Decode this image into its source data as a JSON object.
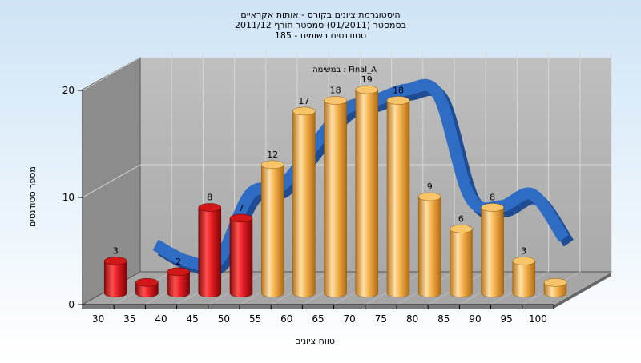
{
  "chart_data": {
    "type": "bar",
    "title_lines": [
      "היסטוגרמת ציונים בקורס - אותות אקראיים",
      "בסמסטר  (01/2011)  סמסטר חורף 2011/12",
      "סטודנטים רשומים - 185"
    ],
    "xlabel": "טווח ציונים",
    "ylabel": "מספר סטודנטים",
    "series_label": "במשימה : Final_A",
    "categories": [
      "30",
      "35",
      "40",
      "45",
      "50",
      "55",
      "60",
      "65",
      "70",
      "75",
      "80",
      "85",
      "90",
      "95",
      "100"
    ],
    "values": [
      3,
      1,
      2,
      8,
      7,
      12,
      17,
      18,
      19,
      18,
      9,
      6,
      8,
      3,
      1
    ],
    "value_labels": [
      "3",
      "",
      "2",
      "8",
      "7",
      "12",
      "17",
      "18",
      "19",
      "18",
      "9",
      "6",
      "8",
      "3",
      ""
    ],
    "fail_count": 5,
    "ylim": [
      0,
      20
    ],
    "yticks": [
      0,
      10,
      20
    ],
    "grid": true,
    "curve": {
      "type": "line",
      "x": [
        35,
        40,
        45,
        50,
        55,
        60,
        65,
        70,
        75,
        80,
        85,
        90,
        95,
        100
      ],
      "values": [
        4.2,
        2.7,
        2.8,
        8.9,
        9.7,
        13.3,
        16.8,
        17.7,
        18.7,
        18.2,
        8.7,
        7.8,
        8.9,
        4.8
      ]
    },
    "colors": {
      "fail_bar": "#e31b23",
      "pass_bar": "#f2b04a",
      "curve": "#2f6cc4",
      "floor": "#a6a6a6",
      "back_wall": "#b4b4b4",
      "side_wall": "#8c8c8c"
    }
  }
}
